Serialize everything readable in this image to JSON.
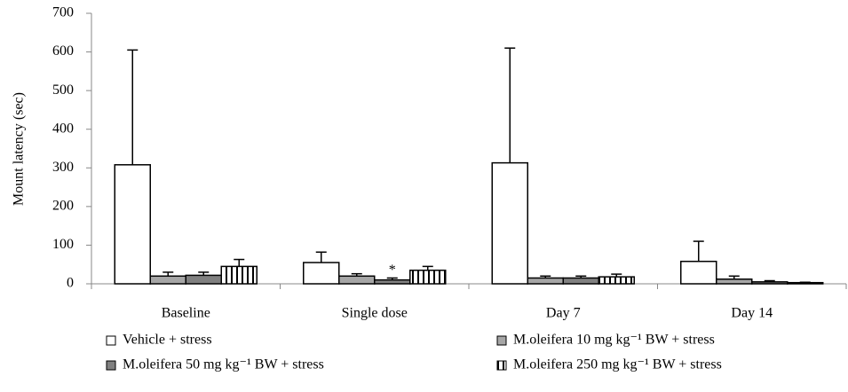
{
  "chart_data": {
    "type": "bar",
    "y_label": "Mount latency (sec)",
    "categories": [
      "Baseline",
      "Single dose",
      "Day 7",
      "Day 14"
    ],
    "series": [
      {
        "name": "Vehicle + stress",
        "color": "#ffffff",
        "values": [
          308,
          55,
          313,
          58
        ],
        "errors": [
          297,
          27,
          297,
          52
        ]
      },
      {
        "name": "M.oleifera 10 mg kg⁻¹ BW + stress",
        "color": "#a6a6a6",
        "values": [
          20,
          20,
          15,
          12
        ],
        "errors": [
          10,
          6,
          5,
          8
        ]
      },
      {
        "name": "M.oleifera 50 mg kg⁻¹ BW + stress",
        "color": "#808080",
        "values": [
          22,
          10,
          15,
          5
        ],
        "errors": [
          8,
          5,
          5,
          3
        ]
      },
      {
        "name": "M.oleifera 250 mg kg⁻¹ BW + stress",
        "color": "#ffffff",
        "hatch": "vertical",
        "values": [
          45,
          35,
          18,
          3
        ],
        "errors": [
          18,
          10,
          7,
          1
        ]
      }
    ],
    "annotations": [
      {
        "text": "*",
        "category": 1,
        "series": 2
      }
    ],
    "ylim": [
      0,
      700
    ],
    "yticks": [
      0,
      100,
      200,
      300,
      400,
      500,
      600,
      700
    ]
  }
}
